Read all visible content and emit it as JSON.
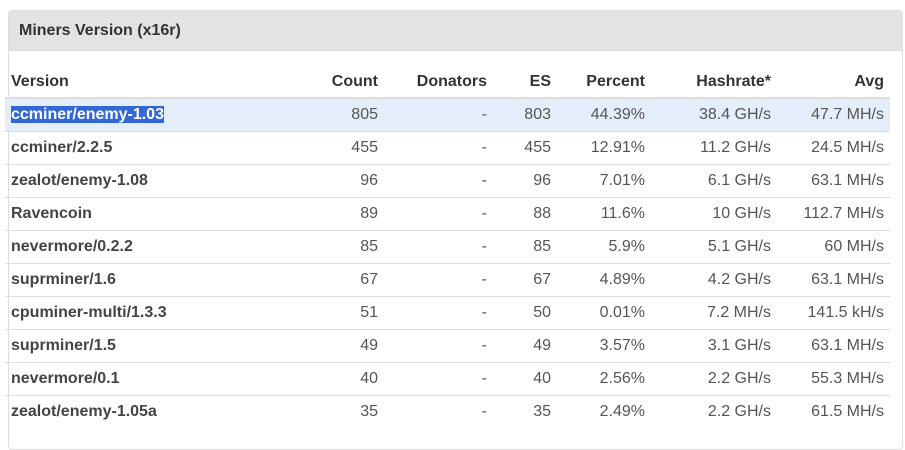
{
  "panel": {
    "title": "Miners Version (x16r)"
  },
  "table": {
    "headers": {
      "version": "Version",
      "count": "Count",
      "donators": "Donators",
      "es": "ES",
      "percent": "Percent",
      "hashrate": "Hashrate*",
      "avg": "Avg"
    },
    "rows": [
      {
        "version": "ccminer/enemy-1.03",
        "count": "805",
        "donators": "-",
        "es": "803",
        "percent": "44.39%",
        "hashrate": "38.4 GH/s",
        "avg": "47.7 MH/s",
        "highlighted": true
      },
      {
        "version": "ccminer/2.2.5",
        "count": "455",
        "donators": "-",
        "es": "455",
        "percent": "12.91%",
        "hashrate": "11.2 GH/s",
        "avg": "24.5 MH/s"
      },
      {
        "version": "zealot/enemy-1.08",
        "count": "96",
        "donators": "-",
        "es": "96",
        "percent": "7.01%",
        "hashrate": "6.1 GH/s",
        "avg": "63.1 MH/s"
      },
      {
        "version": "Ravencoin",
        "count": "89",
        "donators": "-",
        "es": "88",
        "percent": "11.6%",
        "hashrate": "10 GH/s",
        "avg": "112.7 MH/s"
      },
      {
        "version": "nevermore/0.2.2",
        "count": "85",
        "donators": "-",
        "es": "85",
        "percent": "5.9%",
        "hashrate": "5.1 GH/s",
        "avg": "60 MH/s"
      },
      {
        "version": "suprminer/1.6",
        "count": "67",
        "donators": "-",
        "es": "67",
        "percent": "4.89%",
        "hashrate": "4.2 GH/s",
        "avg": "63.1 MH/s"
      },
      {
        "version": "cpuminer-multi/1.3.3",
        "count": "51",
        "donators": "-",
        "es": "50",
        "percent": "0.01%",
        "hashrate": "7.2 MH/s",
        "avg": "141.5 kH/s"
      },
      {
        "version": "suprminer/1.5",
        "count": "49",
        "donators": "-",
        "es": "49",
        "percent": "3.57%",
        "hashrate": "3.1 GH/s",
        "avg": "63.1 MH/s"
      },
      {
        "version": "nevermore/0.1",
        "count": "40",
        "donators": "-",
        "es": "40",
        "percent": "2.56%",
        "hashrate": "2.2 GH/s",
        "avg": "55.3 MH/s"
      },
      {
        "version": "zealot/enemy-1.05a",
        "count": "35",
        "donators": "-",
        "es": "35",
        "percent": "2.49%",
        "hashrate": "2.2 GH/s",
        "avg": "61.5 MH/s"
      }
    ]
  },
  "colors": {
    "heading_bg": "#e3e3e3",
    "row_highlight": "#e4eefa",
    "selection": "#3367d6",
    "border": "#dddddd"
  }
}
